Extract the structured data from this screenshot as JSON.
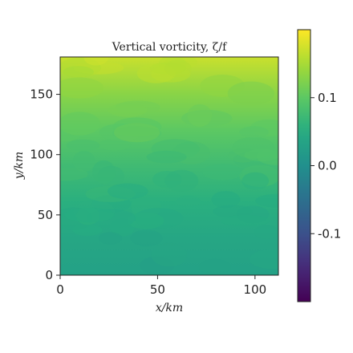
{
  "chart_data": {
    "type": "heatmap",
    "title": "Vertical vorticity, ζ/f",
    "xlabel": "x/km",
    "ylabel": "y/km",
    "xlim": [
      0,
      112
    ],
    "ylim": [
      0,
      181
    ],
    "x_ticks": [
      0,
      50,
      100
    ],
    "y_ticks": [
      0,
      50,
      100,
      150
    ],
    "x_tick_labels": [
      "0",
      "50",
      "100"
    ],
    "y_tick_labels": [
      "0",
      "50",
      "100",
      "150"
    ],
    "colormap": "viridis",
    "colorbar": {
      "range": [
        -0.2,
        0.2
      ],
      "ticks": [
        -0.1,
        0.0,
        0.1
      ],
      "tick_labels": [
        "-0.1",
        "0.0",
        "0.1"
      ],
      "placement": "right"
    },
    "field_description_values": {
      "y_km": [
        0,
        30,
        60,
        90,
        120,
        150,
        181
      ],
      "vorticity": [
        0.03,
        0.04,
        0.055,
        0.075,
        0.1,
        0.13,
        0.17
      ]
    },
    "grid": false
  }
}
